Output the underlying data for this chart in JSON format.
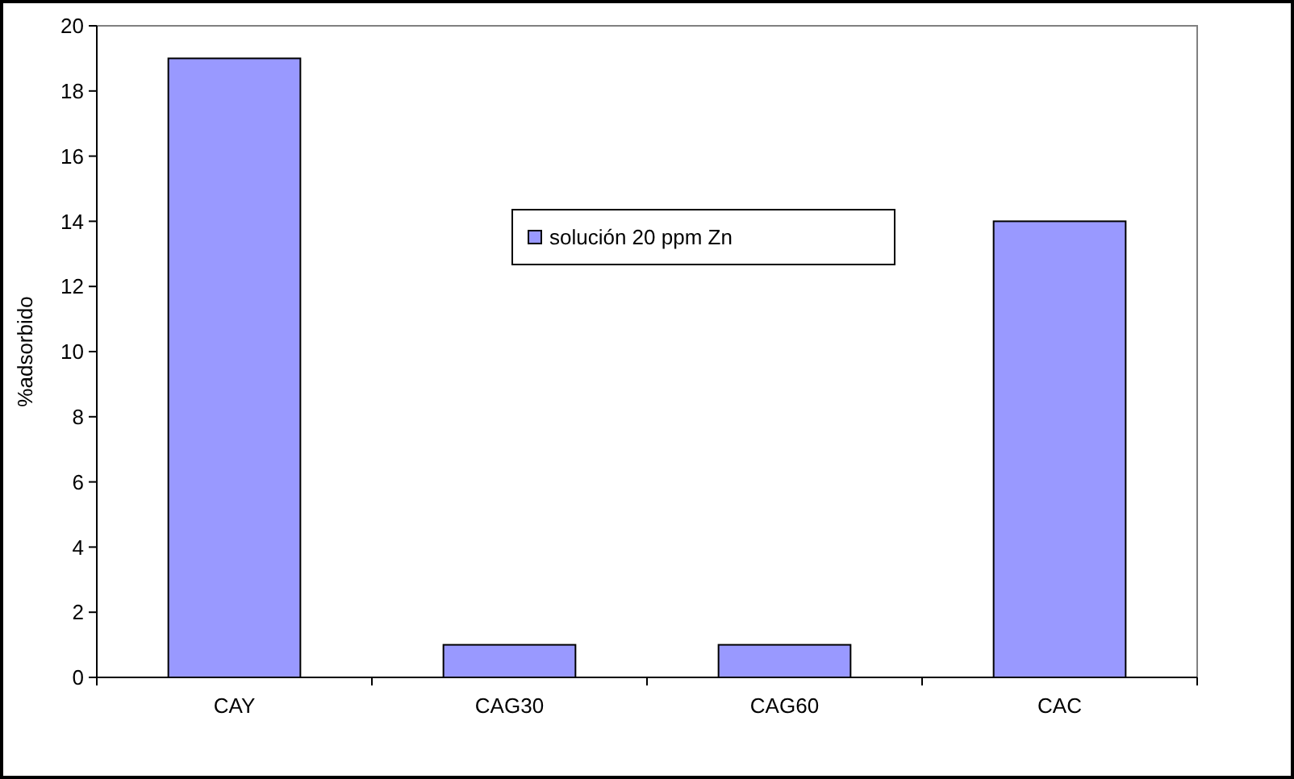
{
  "chart_data": {
    "type": "bar",
    "ylabel": "%adsorbido",
    "categories": [
      "CAY",
      "CAG30",
      "CAG60",
      "CAC"
    ],
    "series": [
      {
        "name": "solución 20 ppm Zn",
        "color": "#9999ff",
        "values": [
          19,
          1,
          1,
          14
        ]
      }
    ],
    "ylim": [
      0,
      20
    ],
    "yticks": [
      0,
      2,
      4,
      6,
      8,
      10,
      12,
      14,
      16,
      18,
      20
    ],
    "grid": false,
    "legend": "top"
  }
}
